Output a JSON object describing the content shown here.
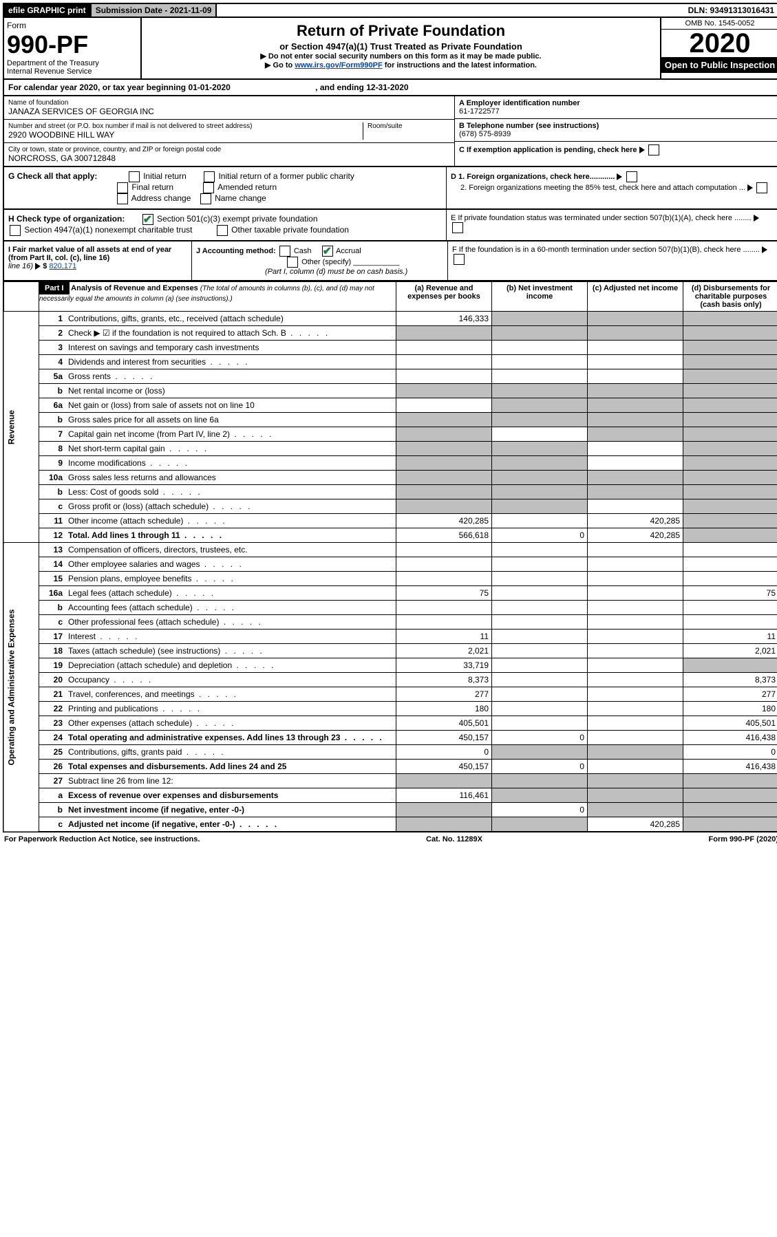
{
  "topbar": {
    "efile": "efile GRAPHIC print",
    "submission": "Submission Date - 2021-11-09",
    "dln": "DLN: 93491313016431"
  },
  "header": {
    "form_label": "Form",
    "form_number": "990-PF",
    "dept": "Department of the Treasury",
    "irs": "Internal Revenue Service",
    "title": "Return of Private Foundation",
    "subtitle": "or Section 4947(a)(1) Trust Treated as Private Foundation",
    "line1": "▶ Do not enter social security numbers on this form as it may be made public.",
    "line2_pre": "▶ Go to ",
    "line2_link": "www.irs.gov/Form990PF",
    "line2_post": " for instructions and the latest information.",
    "omb": "OMB No. 1545-0052",
    "year": "2020",
    "inspect": "Open to Public Inspection"
  },
  "calendar": {
    "text_pre": "For calendar year 2020, or tax year beginning ",
    "begin": "01-01-2020",
    "text_mid": " , and ending ",
    "end": "12-31-2020"
  },
  "entity": {
    "name_label": "Name of foundation",
    "name": "JANAZA SERVICES OF GEORGIA INC",
    "addr_label": "Number and street (or P.O. box number if mail is not delivered to street address)",
    "addr": "2920 WOODBINE HILL WAY",
    "room_label": "Room/suite",
    "city_label": "City or town, state or province, country, and ZIP or foreign postal code",
    "city": "NORCROSS, GA  300712848",
    "ein_label": "A Employer identification number",
    "ein": "61-1722577",
    "phone_label": "B Telephone number (see instructions)",
    "phone": "(678) 575-8939",
    "c_label": "C If exemption application is pending, check here",
    "d1": "D 1. Foreign organizations, check here............",
    "d2": "2. Foreign organizations meeting the 85% test, check here and attach computation ...",
    "e_label": "E  If private foundation status was terminated under section 507(b)(1)(A), check here ........",
    "f_label": "F  If the foundation is in a 60-month termination under section 507(b)(1)(B), check here ........"
  },
  "g_section": {
    "label": "G Check all that apply:",
    "opts": [
      "Initial return",
      "Initial return of a former public charity",
      "Final return",
      "Amended return",
      "Address change",
      "Name change"
    ]
  },
  "h_section": {
    "label": "H Check type of organization:",
    "opt1": "Section 501(c)(3) exempt private foundation",
    "opt2": "Section 4947(a)(1) nonexempt charitable trust",
    "opt3": "Other taxable private foundation"
  },
  "i_section": {
    "label": "I Fair market value of all assets at end of year (from Part II, col. (c), line 16)",
    "value": "820,171"
  },
  "j_section": {
    "label": "J Accounting method:",
    "cash": "Cash",
    "accrual": "Accrual",
    "other": "Other (specify)",
    "note": "(Part I, column (d) must be on cash basis.)"
  },
  "part1": {
    "header": "Part I",
    "title": "Analysis of Revenue and Expenses",
    "title_sub": " (The total of amounts in columns (b), (c), and (d) may not necessarily equal the amounts in column (a) (see instructions).)",
    "col_a": "(a) Revenue and expenses per books",
    "col_b": "(b) Net investment income",
    "col_c": "(c) Adjusted net income",
    "col_d": "(d) Disbursements for charitable purposes (cash basis only)"
  },
  "side_labels": {
    "revenue": "Revenue",
    "expenses": "Operating and Administrative Expenses"
  },
  "rows": [
    {
      "n": "1",
      "desc": "Contributions, gifts, grants, etc., received (attach schedule)",
      "a": "146,333",
      "b": "gray",
      "c": "gray",
      "d": "gray"
    },
    {
      "n": "2",
      "desc": "Check ▶ ☑ if the foundation is not required to attach Sch. B",
      "a": "gray",
      "b": "gray",
      "c": "gray",
      "d": "gray",
      "dots": true
    },
    {
      "n": "3",
      "desc": "Interest on savings and temporary cash investments",
      "a": "",
      "b": "",
      "c": "",
      "d": "gray"
    },
    {
      "n": "4",
      "desc": "Dividends and interest from securities",
      "a": "",
      "b": "",
      "c": "",
      "d": "gray",
      "dots": true
    },
    {
      "n": "5a",
      "desc": "Gross rents",
      "a": "",
      "b": "",
      "c": "",
      "d": "gray",
      "dots": true
    },
    {
      "n": "b",
      "desc": "Net rental income or (loss)",
      "a": "gray",
      "b": "gray",
      "c": "gray",
      "d": "gray"
    },
    {
      "n": "6a",
      "desc": "Net gain or (loss) from sale of assets not on line 10",
      "a": "",
      "b": "gray",
      "c": "gray",
      "d": "gray"
    },
    {
      "n": "b",
      "desc": "Gross sales price for all assets on line 6a",
      "a": "gray",
      "b": "gray",
      "c": "gray",
      "d": "gray"
    },
    {
      "n": "7",
      "desc": "Capital gain net income (from Part IV, line 2)",
      "a": "gray",
      "b": "",
      "c": "gray",
      "d": "gray",
      "dots": true
    },
    {
      "n": "8",
      "desc": "Net short-term capital gain",
      "a": "gray",
      "b": "gray",
      "c": "",
      "d": "gray",
      "dots": true
    },
    {
      "n": "9",
      "desc": "Income modifications",
      "a": "gray",
      "b": "gray",
      "c": "",
      "d": "gray",
      "dots": true
    },
    {
      "n": "10a",
      "desc": "Gross sales less returns and allowances",
      "a": "gray",
      "b": "gray",
      "c": "gray",
      "d": "gray"
    },
    {
      "n": "b",
      "desc": "Less: Cost of goods sold",
      "a": "gray",
      "b": "gray",
      "c": "gray",
      "d": "gray",
      "dots": true
    },
    {
      "n": "c",
      "desc": "Gross profit or (loss) (attach schedule)",
      "a": "gray",
      "b": "gray",
      "c": "",
      "d": "gray",
      "dots": true
    },
    {
      "n": "11",
      "desc": "Other income (attach schedule)",
      "a": "420,285",
      "b": "",
      "c": "420,285",
      "d": "gray",
      "dots": true
    },
    {
      "n": "12",
      "desc": "Total. Add lines 1 through 11",
      "a": "566,618",
      "b": "0",
      "c": "420,285",
      "d": "gray",
      "bold": true,
      "dots": true
    },
    {
      "n": "13",
      "desc": "Compensation of officers, directors, trustees, etc.",
      "a": "",
      "b": "",
      "c": "",
      "d": ""
    },
    {
      "n": "14",
      "desc": "Other employee salaries and wages",
      "a": "",
      "b": "",
      "c": "",
      "d": "",
      "dots": true
    },
    {
      "n": "15",
      "desc": "Pension plans, employee benefits",
      "a": "",
      "b": "",
      "c": "",
      "d": "",
      "dots": true
    },
    {
      "n": "16a",
      "desc": "Legal fees (attach schedule)",
      "a": "75",
      "b": "",
      "c": "",
      "d": "75",
      "dots": true
    },
    {
      "n": "b",
      "desc": "Accounting fees (attach schedule)",
      "a": "",
      "b": "",
      "c": "",
      "d": "",
      "dots": true
    },
    {
      "n": "c",
      "desc": "Other professional fees (attach schedule)",
      "a": "",
      "b": "",
      "c": "",
      "d": "",
      "dots": true
    },
    {
      "n": "17",
      "desc": "Interest",
      "a": "11",
      "b": "",
      "c": "",
      "d": "11",
      "dots": true
    },
    {
      "n": "18",
      "desc": "Taxes (attach schedule) (see instructions)",
      "a": "2,021",
      "b": "",
      "c": "",
      "d": "2,021",
      "dots": true
    },
    {
      "n": "19",
      "desc": "Depreciation (attach schedule) and depletion",
      "a": "33,719",
      "b": "",
      "c": "",
      "d": "gray",
      "dots": true
    },
    {
      "n": "20",
      "desc": "Occupancy",
      "a": "8,373",
      "b": "",
      "c": "",
      "d": "8,373",
      "dots": true
    },
    {
      "n": "21",
      "desc": "Travel, conferences, and meetings",
      "a": "277",
      "b": "",
      "c": "",
      "d": "277",
      "dots": true
    },
    {
      "n": "22",
      "desc": "Printing and publications",
      "a": "180",
      "b": "",
      "c": "",
      "d": "180",
      "dots": true
    },
    {
      "n": "23",
      "desc": "Other expenses (attach schedule)",
      "a": "405,501",
      "b": "",
      "c": "",
      "d": "405,501",
      "dots": true
    },
    {
      "n": "24",
      "desc": "Total operating and administrative expenses. Add lines 13 through 23",
      "a": "450,157",
      "b": "0",
      "c": "",
      "d": "416,438",
      "bold": true,
      "dots": true
    },
    {
      "n": "25",
      "desc": "Contributions, gifts, grants paid",
      "a": "0",
      "b": "gray",
      "c": "gray",
      "d": "0",
      "dots": true
    },
    {
      "n": "26",
      "desc": "Total expenses and disbursements. Add lines 24 and 25",
      "a": "450,157",
      "b": "0",
      "c": "",
      "d": "416,438",
      "bold": true
    },
    {
      "n": "27",
      "desc": "Subtract line 26 from line 12:",
      "a": "gray",
      "b": "gray",
      "c": "gray",
      "d": "gray"
    },
    {
      "n": "a",
      "desc": "Excess of revenue over expenses and disbursements",
      "a": "116,461",
      "b": "gray",
      "c": "gray",
      "d": "gray",
      "bold": true
    },
    {
      "n": "b",
      "desc": "Net investment income (if negative, enter -0-)",
      "a": "gray",
      "b": "0",
      "c": "gray",
      "d": "gray",
      "bold": true
    },
    {
      "n": "c",
      "desc": "Adjusted net income (if negative, enter -0-)",
      "a": "gray",
      "b": "gray",
      "c": "420,285",
      "d": "gray",
      "bold": true,
      "dots": true
    }
  ],
  "footer": {
    "left": "For Paperwork Reduction Act Notice, see instructions.",
    "mid": "Cat. No. 11289X",
    "right": "Form 990-PF (2020)"
  }
}
